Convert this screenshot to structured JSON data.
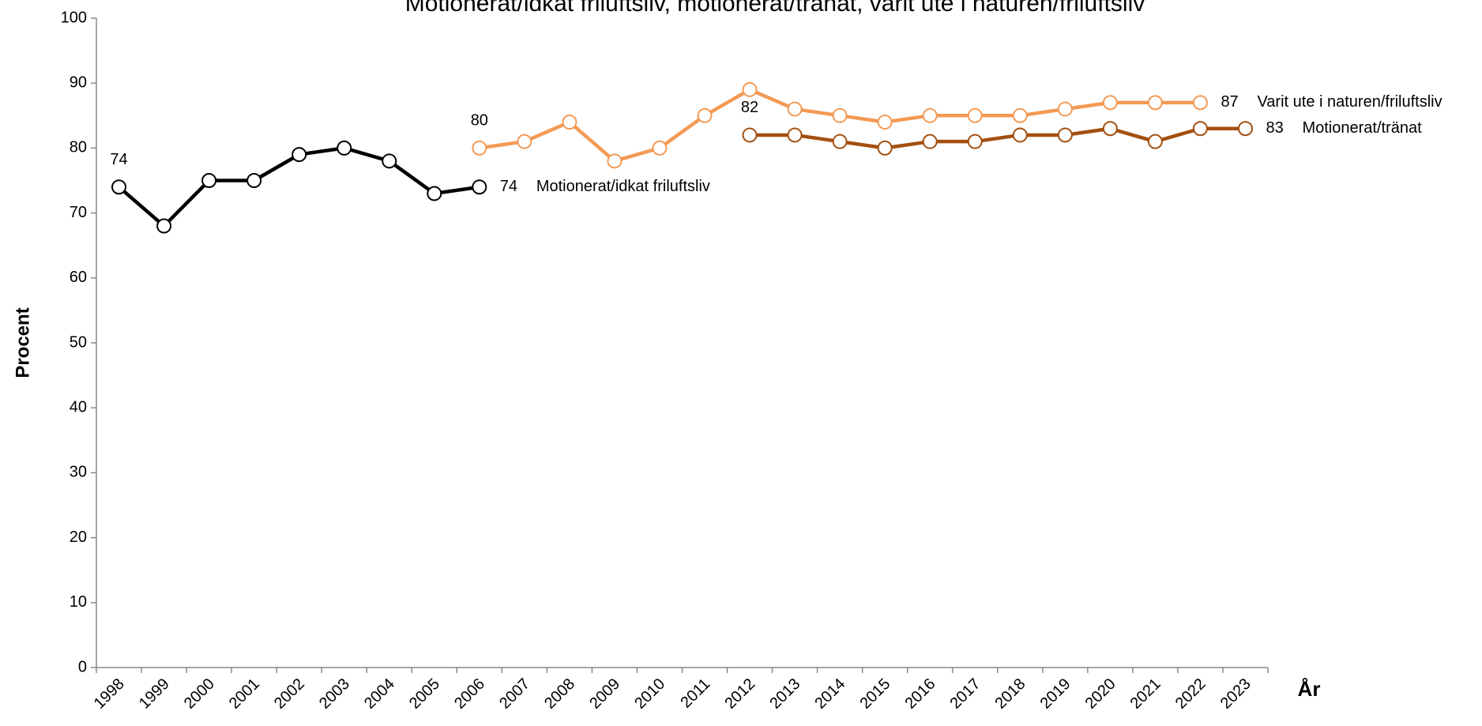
{
  "chart_data": {
    "type": "line",
    "title": "Motionerat/idkat friluftsliv, motionerat/tränat, varit ute i naturen/friluftsliv",
    "x_label": "År",
    "y_label": "Procent",
    "categories": [
      "1998",
      "1999",
      "2000",
      "2001",
      "2002",
      "2003",
      "2004",
      "2005",
      "2006",
      "2007",
      "2008",
      "2009",
      "2010",
      "2011",
      "2012",
      "2013",
      "2014",
      "2015",
      "2016",
      "2017",
      "2018",
      "2019",
      "2020",
      "2021",
      "2022",
      "2023"
    ],
    "series": [
      {
        "name": "Motionerat/idkat friluftsliv",
        "color": "#000000",
        "values": [
          74,
          68,
          75,
          75,
          79,
          80,
          78,
          73,
          74,
          null,
          null,
          null,
          null,
          null,
          null,
          null,
          null,
          null,
          null,
          null,
          null,
          null,
          null,
          null,
          null,
          null
        ]
      },
      {
        "name": "Varit ute i naturen/friluftsliv",
        "color": "#f39a55",
        "values": [
          null,
          null,
          null,
          null,
          null,
          null,
          null,
          null,
          80,
          81,
          84,
          78,
          80,
          85,
          89,
          86,
          85,
          84,
          85,
          85,
          85,
          86,
          87,
          87,
          87,
          null
        ]
      },
      {
        "name": "Motionerat/tränat",
        "color": "#a34f0e",
        "values": [
          null,
          null,
          null,
          null,
          null,
          null,
          null,
          null,
          null,
          null,
          null,
          null,
          null,
          null,
          82,
          82,
          81,
          80,
          81,
          81,
          82,
          82,
          83,
          81,
          83,
          83
        ]
      }
    ],
    "ylim": [
      0,
      100
    ],
    "yticks": [
      0,
      10,
      20,
      30,
      40,
      50,
      60,
      70,
      80,
      90,
      100
    ],
    "grid": false
  }
}
